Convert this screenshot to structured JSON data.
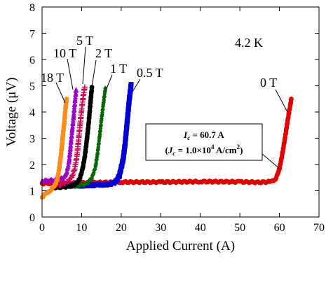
{
  "chart_data": {
    "type": "scatter",
    "xlabel": "Applied Current (A)",
    "ylabel": "Voltage (μV)",
    "xlim": [
      0,
      70
    ],
    "ylim": [
      0,
      8
    ],
    "xticks": [
      0,
      10,
      20,
      30,
      40,
      50,
      60,
      70
    ],
    "yticks": [
      0,
      1,
      2,
      3,
      4,
      5,
      6,
      7,
      8
    ],
    "grid": false,
    "temperature_label": "4.2 K",
    "annotation": {
      "line1": "I_c = 60.7 A",
      "line2": "(J_c = 1.0×10^4 A/cm^2)",
      "ic_value_A": 60.7,
      "jc_value_A_per_cm2": 10000
    },
    "series": [
      {
        "name": "0 T",
        "color": "#e00000",
        "marker": "circle",
        "x": [
          0,
          10,
          20,
          30,
          40,
          50,
          55,
          58,
          59,
          59.5,
          60,
          60.5,
          61,
          61.5,
          62,
          62.5,
          63
        ],
        "y": [
          1.28,
          1.3,
          1.33,
          1.33,
          1.35,
          1.34,
          1.32,
          1.35,
          1.45,
          1.6,
          1.85,
          2.2,
          2.65,
          3.1,
          3.6,
          4.05,
          4.5
        ]
      },
      {
        "name": "0.5 T",
        "color": "#0000d0",
        "marker": "square",
        "x": [
          3,
          6,
          10,
          14,
          17,
          18.5,
          19.5,
          20.5,
          21,
          21.5,
          22,
          22.5
        ],
        "y": [
          1.18,
          1.2,
          1.2,
          1.22,
          1.25,
          1.32,
          1.55,
          2.2,
          2.8,
          3.6,
          4.4,
          5.05
        ]
      },
      {
        "name": "1 T",
        "color": "#006600",
        "marker": "diamond",
        "x": [
          3,
          6,
          9,
          11,
          12.5,
          13.5,
          14,
          14.5,
          15,
          15.5,
          16
        ],
        "y": [
          1.15,
          1.17,
          1.2,
          1.25,
          1.45,
          1.9,
          2.4,
          3.0,
          3.7,
          4.3,
          4.9
        ]
      },
      {
        "name": "2 T",
        "color": "#000000",
        "marker": "circle",
        "x": [
          3,
          5,
          7,
          8.5,
          9.5,
          10.2,
          10.8,
          11.3,
          11.8,
          12.2,
          12.6
        ],
        "y": [
          1.12,
          1.14,
          1.17,
          1.25,
          1.45,
          1.8,
          2.3,
          2.9,
          3.6,
          4.3,
          4.95
        ]
      },
      {
        "name": "5 T",
        "color": "#cc0055",
        "marker": "plus",
        "x": [
          3,
          5,
          6.5,
          7.5,
          8.2,
          8.8,
          9.2,
          9.6,
          10,
          10.4,
          10.8
        ],
        "y": [
          1.2,
          1.25,
          1.35,
          1.5,
          1.8,
          2.3,
          2.9,
          3.5,
          4.1,
          4.6,
          4.95
        ]
      },
      {
        "name": "10 T",
        "color": "#9900cc",
        "marker": "triangle",
        "x": [
          0,
          2,
          4,
          5.5,
          6.2,
          6.8,
          7.2,
          7.6,
          8,
          8.3,
          8.6
        ],
        "y": [
          1.38,
          1.4,
          1.42,
          1.5,
          1.7,
          2.1,
          2.7,
          3.3,
          3.9,
          4.4,
          4.85
        ]
      },
      {
        "name": "18 T",
        "color": "#ff8c1a",
        "marker": "circle",
        "x": [
          0,
          1,
          2,
          3,
          3.8,
          4.3,
          4.8,
          5.2,
          5.6,
          5.9,
          6.2
        ],
        "y": [
          0.75,
          0.9,
          1.0,
          1.15,
          1.4,
          1.8,
          2.4,
          3.0,
          3.6,
          4.1,
          4.5
        ]
      }
    ]
  }
}
